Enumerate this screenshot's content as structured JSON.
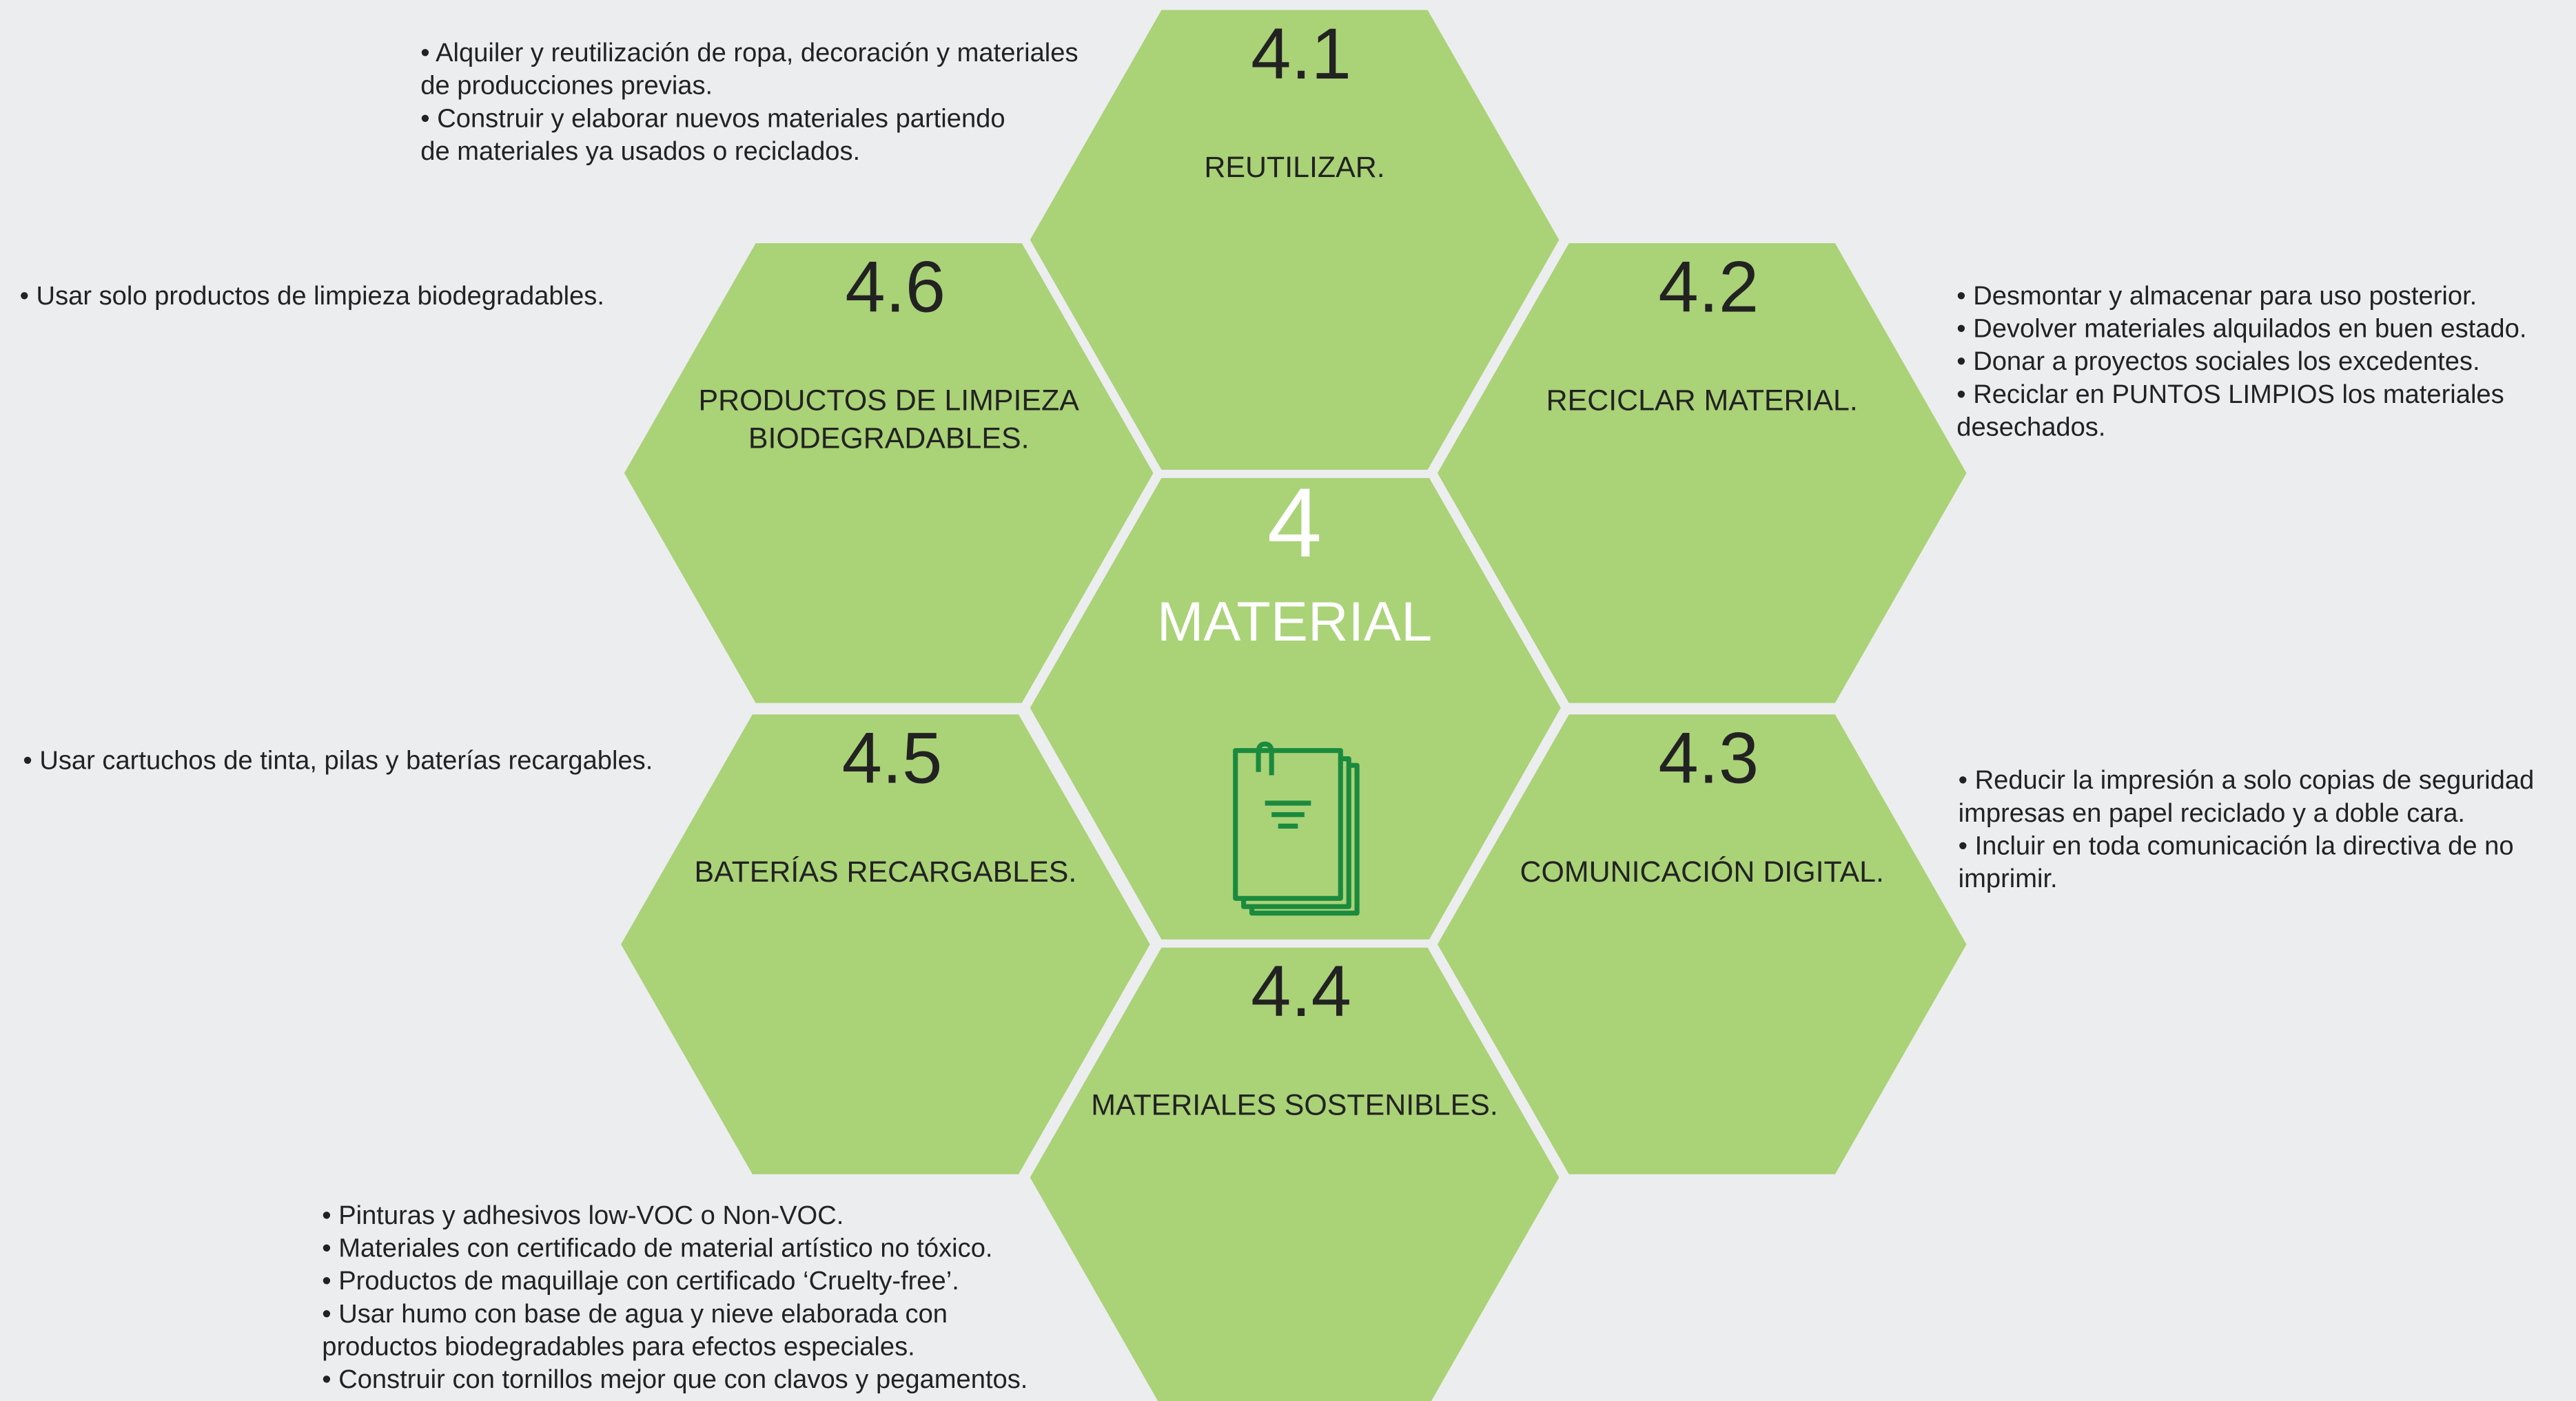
{
  "center": {
    "number": "4",
    "label": "MATERIAL"
  },
  "nodes": [
    {
      "number": "4.1",
      "label": [
        "REUTILIZAR."
      ],
      "bullets": [
        "• Alquiler y reutilización de ropa, decoración y materiales",
        "de producciones previas.",
        "• Construir y elaborar nuevos materiales partiendo",
        "de materiales ya usados o reciclados."
      ]
    },
    {
      "number": "4.2",
      "label": [
        "RECICLAR MATERIAL."
      ],
      "bullets": [
        "• Desmontar y almacenar para uso posterior.",
        "• Devolver materiales alquilados en buen estado.",
        "• Donar a proyectos sociales los excedentes.",
        "• Reciclar en PUNTOS LIMPIOS los materiales",
        "desechados."
      ]
    },
    {
      "number": "4.3",
      "label": [
        "COMUNICACIÓN DIGITAL."
      ],
      "bullets": [
        "• Reducir la impresión a solo copias de seguridad",
        "impresas en papel reciclado y a doble cara.",
        "• Incluir en toda comunicación la directiva de no",
        "imprimir."
      ]
    },
    {
      "number": "4.4",
      "label": [
        "MATERIALES SOSTENIBLES."
      ],
      "bullets": [
        "• Pinturas y adhesivos low-VOC o Non-VOC.",
        "• Materiales con certificado de material artístico no tóxico.",
        "• Productos de maquillaje con certificado ‘Cruelty-free’.",
        "• Usar humo con base de agua y nieve elaborada con",
        "productos biodegradables para efectos especiales.",
        "• Construir con tornillos mejor que con clavos y pegamentos."
      ]
    },
    {
      "number": "4.5",
      "label": [
        "BATERÍAS RECARGABLES."
      ],
      "bullets": [
        "• Usar cartuchos de tinta, pilas y baterías recargables."
      ]
    },
    {
      "number": "4.6",
      "label": [
        "PRODUCTOS DE LIMPIEZA",
        "BIODEGRADABLES."
      ],
      "bullets": [
        "• Usar solo productos de limpieza biodegradables."
      ]
    }
  ]
}
